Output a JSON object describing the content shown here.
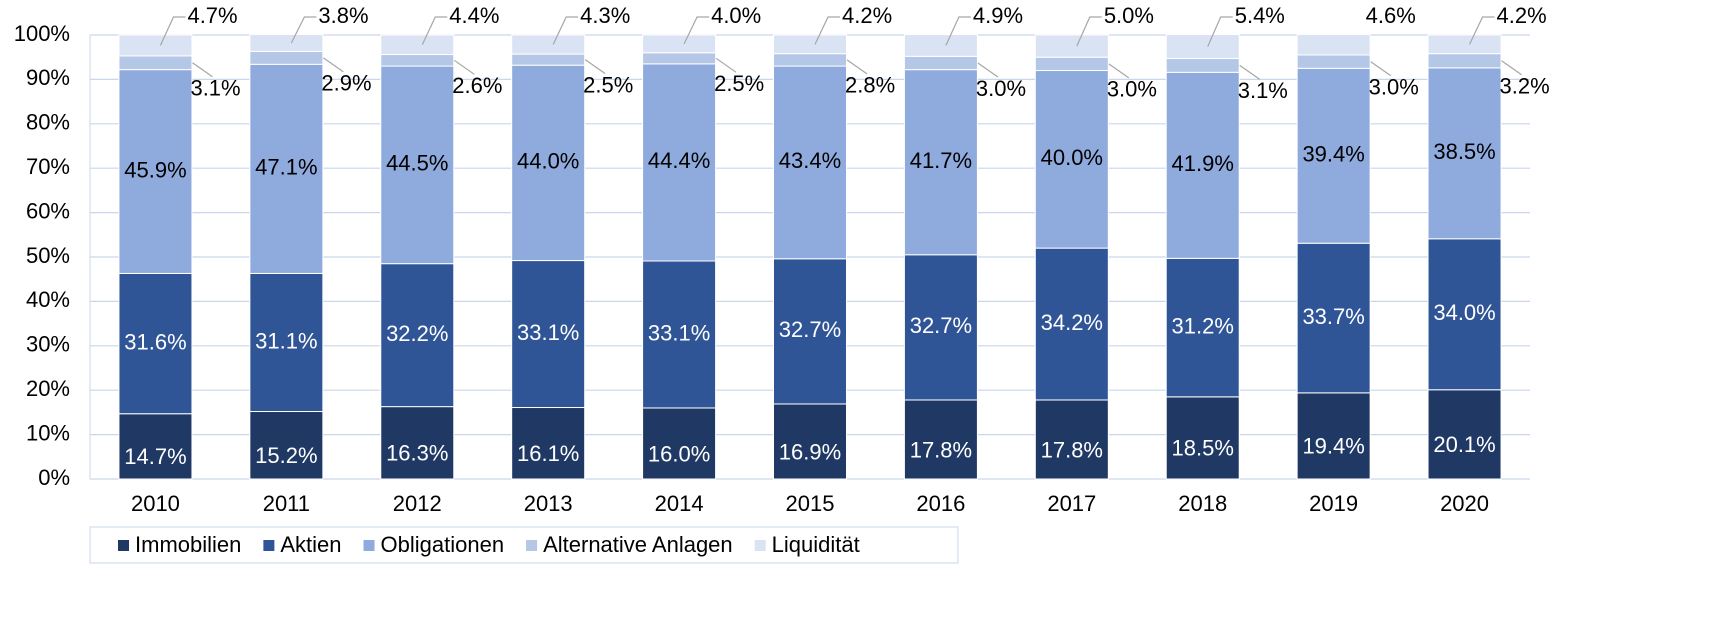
{
  "chart_data": {
    "type": "stacked_bar",
    "categories": [
      "2010",
      "2011",
      "2012",
      "2013",
      "2014",
      "2015",
      "2016",
      "2017",
      "2018",
      "2019",
      "2020"
    ],
    "series": [
      {
        "name": "Immobilien",
        "color": "#1f3864",
        "label_color": "#ffffff",
        "values": [
          14.7,
          15.2,
          16.3,
          16.1,
          16.0,
          16.9,
          17.8,
          17.8,
          18.5,
          19.4,
          20.1
        ],
        "value_labels": [
          "14.7%",
          "15.2%",
          "16.3%",
          "16.1%",
          "16.0%",
          "16.9%",
          "17.8%",
          "17.8%",
          "18.5%",
          "19.4%",
          "20.1%"
        ]
      },
      {
        "name": "Aktien",
        "color": "#2f5597",
        "label_color": "#ffffff",
        "values": [
          31.6,
          31.1,
          32.2,
          33.1,
          33.1,
          32.7,
          32.7,
          34.2,
          31.2,
          33.7,
          34.0
        ],
        "value_labels": [
          "31.6%",
          "31.1%",
          "32.2%",
          "33.1%",
          "33.1%",
          "32.7%",
          "32.7%",
          "34.2%",
          "31.2%",
          "33.7%",
          "34.0%"
        ]
      },
      {
        "name": "Obligationen",
        "color": "#8faadc",
        "label_color": "#000000",
        "values": [
          45.9,
          47.1,
          44.5,
          44.0,
          44.4,
          43.4,
          41.7,
          40.0,
          41.9,
          39.4,
          38.5
        ],
        "value_labels": [
          "45.9%",
          "47.1%",
          "44.5%",
          "44.0%",
          "44.4%",
          "43.4%",
          "41.7%",
          "40.0%",
          "41.9%",
          "39.4%",
          "38.5%"
        ]
      },
      {
        "name": "Alternative Anlagen",
        "color": "#b4c7e7",
        "label_color": "#000000",
        "values": [
          3.1,
          2.9,
          2.6,
          2.5,
          2.5,
          2.8,
          3.0,
          3.0,
          3.1,
          3.0,
          3.2
        ],
        "value_labels": [
          "3.1%",
          "2.9%",
          "2.6%",
          "2.5%",
          "2.5%",
          "2.8%",
          "3.0%",
          "3.0%",
          "3.1%",
          "3.0%",
          "3.2%"
        ]
      },
      {
        "name": "Liquidität",
        "color": "#dae3f3",
        "label_color": "#000000",
        "values": [
          4.7,
          3.8,
          4.4,
          4.3,
          4.0,
          4.2,
          4.9,
          5.0,
          5.4,
          4.6,
          4.2
        ],
        "value_labels": [
          "4.7%",
          "3.8%",
          "4.4%",
          "4.3%",
          "4.0%",
          "4.2%",
          "4.9%",
          "5.0%",
          "5.4%",
          "4.6%",
          "4.2%"
        ]
      }
    ],
    "ylim": [
      0,
      100
    ],
    "yticks": [
      {
        "value": 0,
        "label": "0%"
      },
      {
        "value": 10,
        "label": "10%"
      },
      {
        "value": 20,
        "label": "20%"
      },
      {
        "value": 30,
        "label": "30%"
      },
      {
        "value": 40,
        "label": "40%"
      },
      {
        "value": 50,
        "label": "50%"
      },
      {
        "value": 60,
        "label": "60%"
      },
      {
        "value": 70,
        "label": "70%"
      },
      {
        "value": 80,
        "label": "80%"
      },
      {
        "value": 90,
        "label": "90%"
      },
      {
        "value": 100,
        "label": "100%"
      }
    ],
    "grid": true,
    "legend": "bottom"
  }
}
